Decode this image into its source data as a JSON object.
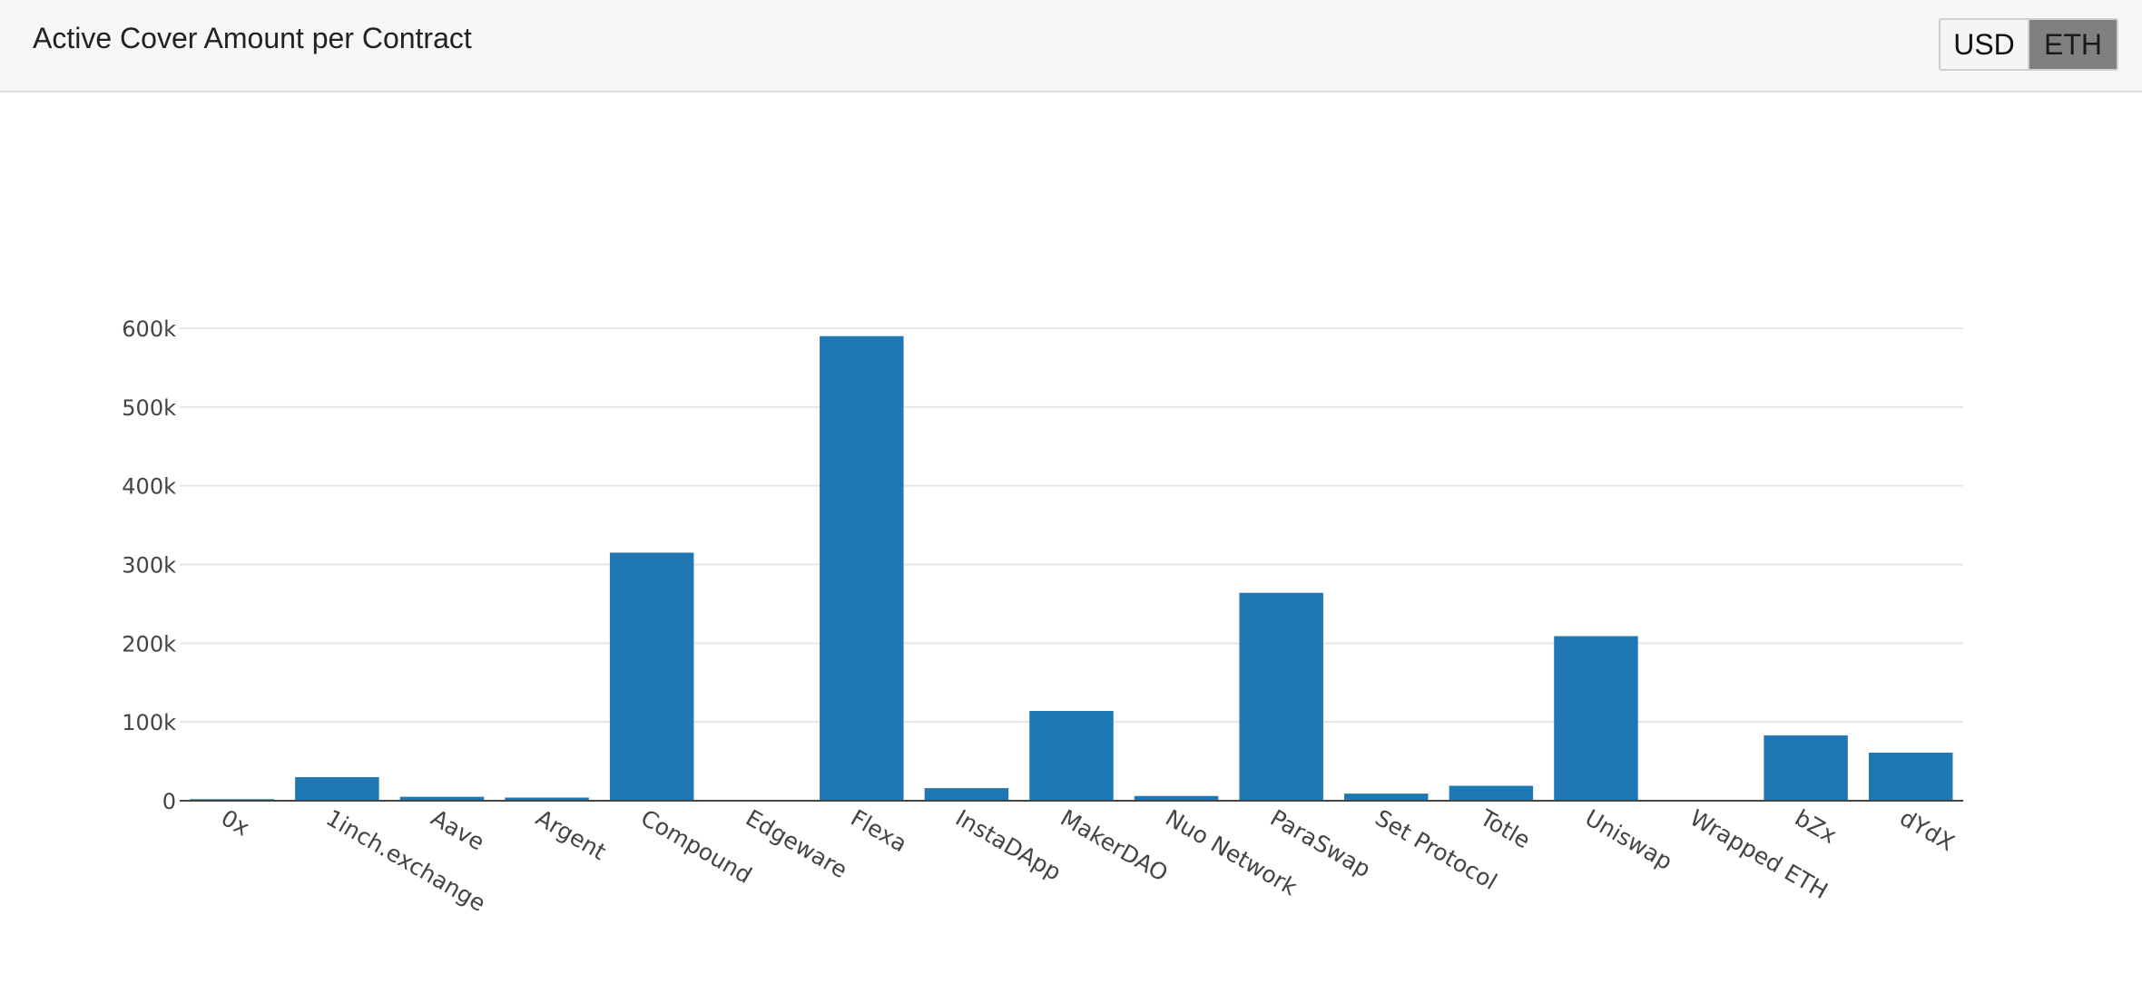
{
  "header": {
    "title": "Active Cover Amount per Contract",
    "currency_options": [
      "USD",
      "ETH"
    ],
    "selected_currency": "ETH"
  },
  "colors": {
    "bar": "#1f77b4",
    "grid": "#e6e6e6",
    "axis": "#444444",
    "text": "#444444"
  },
  "chart_data": {
    "type": "bar",
    "title": "Active Cover Amount per Contract",
    "xlabel": "",
    "ylabel": "",
    "categories": [
      "0x",
      "1inch.exchange",
      "Aave",
      "Argent",
      "Compound",
      "Edgeware",
      "Flexa",
      "InstaDApp",
      "MakerDAO",
      "Nuo Network",
      "ParaSwap",
      "Set Protocol",
      "Totle",
      "Uniswap",
      "Wrapped ETH",
      "bZx",
      "dYdX"
    ],
    "values": [
      2000,
      30000,
      5000,
      4000,
      315000,
      1000,
      590000,
      16000,
      114000,
      6000,
      264000,
      9000,
      19000,
      209000,
      1000,
      83000,
      61000
    ],
    "ylim": [
      0,
      600000
    ],
    "yticks": [
      0,
      100000,
      200000,
      300000,
      400000,
      500000,
      600000
    ],
    "ytick_labels": [
      "0",
      "100k",
      "200k",
      "300k",
      "400k",
      "500k",
      "600k"
    ],
    "grid": true
  }
}
